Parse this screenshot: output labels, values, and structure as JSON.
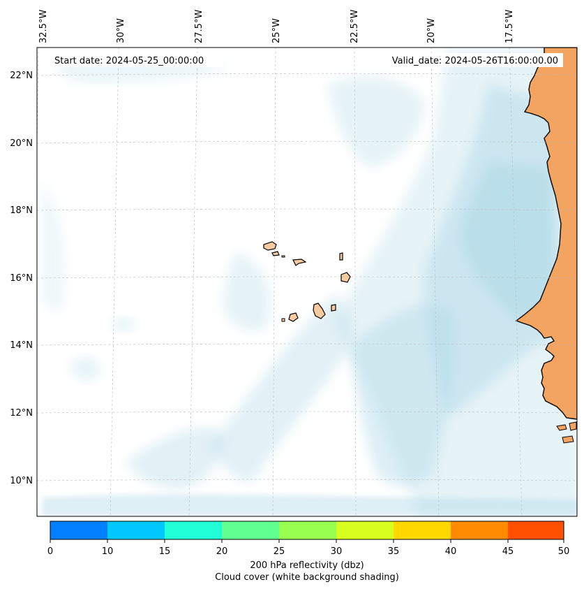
{
  "map": {
    "start_date": "Start date: 2024-05-25_00:00:00",
    "valid_date": "Valid_date: 2024-05-26T16:00:00.00",
    "lon_labels": [
      "32.5°W",
      "30°W",
      "27.5°W",
      "25°W",
      "22.5°W",
      "20°W",
      "17.5°W"
    ],
    "lat_labels": [
      "22°N",
      "20°N",
      "18°N",
      "16°N",
      "14°N",
      "12°N",
      "10°N"
    ],
    "land_color": "#f2a460",
    "cloud_color": "#add8e6"
  },
  "colorbar": {
    "ticks": [
      "0",
      "10",
      "15",
      "20",
      "25",
      "30",
      "35",
      "40",
      "45",
      "50"
    ],
    "colors": [
      "#0080ff",
      "#00c8ff",
      "#20ffd8",
      "#60ff90",
      "#98ff50",
      "#d8ff20",
      "#ffd800",
      "#ff8c00",
      "#ff5000"
    ],
    "label_line1": "200 hPa reflectivity (dbz)",
    "label_line2": "Cloud cover (white background shading)"
  }
}
